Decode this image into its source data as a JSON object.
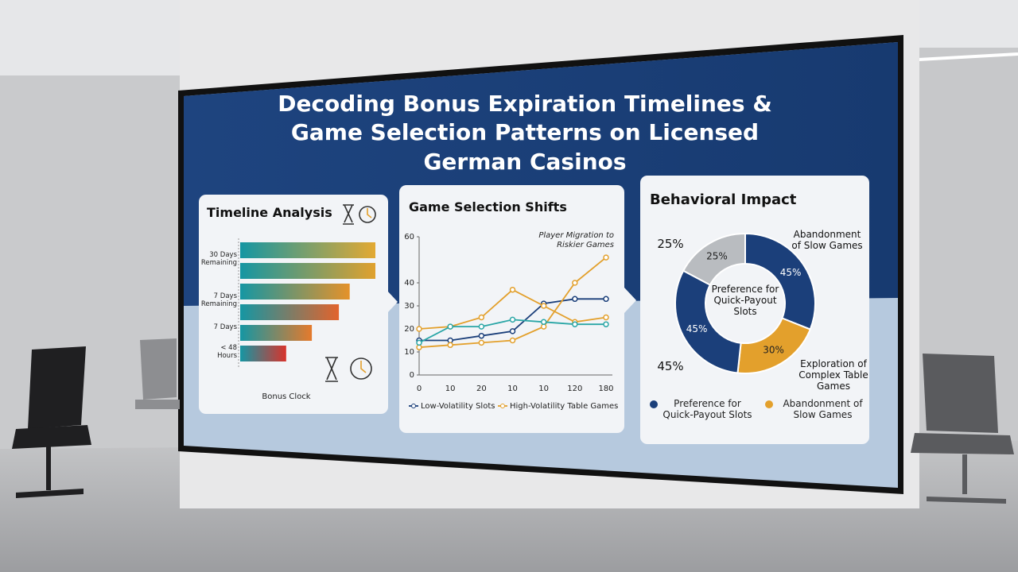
{
  "title": "Decoding Bonus Expiration Timelines & Game Selection Patterns on Licensed German Casinos",
  "chart_data": [
    {
      "type": "bar",
      "orientation": "horizontal",
      "title": "Timeline Analysis",
      "categories": [
        "30 Days Remaining",
        null,
        "7 Days Remaining",
        null,
        "7 Days",
        "< 48 Hours"
      ],
      "values": [
        100,
        100,
        81,
        73,
        53,
        34
      ],
      "colors": [
        "#e3a933",
        "#e0a12e",
        "#e5922a",
        "#e2632c",
        "#e57a2c",
        "#d8332c"
      ],
      "xlabel": "Bonus Clock"
    },
    {
      "type": "line",
      "title": "Game Selection Shifts",
      "categories": [
        "0",
        "10",
        "20",
        "10",
        "10",
        "120",
        "180"
      ],
      "ylim": [
        0,
        60
      ],
      "yticks": [
        0,
        10,
        20,
        30,
        40,
        60
      ],
      "annotation": "Player Migration to Riskier Games",
      "series": [
        {
          "name": "Low-Volatility Slots",
          "color": "#1b3f7a",
          "values": [
            15,
            15,
            17,
            19,
            31,
            33,
            33
          ]
        },
        {
          "name": "High-Volatility Table Games",
          "color": "#e3a02c",
          "values": [
            12,
            13,
            14,
            15,
            21,
            40,
            51
          ]
        },
        {
          "color": "#e3a02c",
          "values": [
            20,
            21,
            25,
            37,
            30,
            23,
            25
          ]
        },
        {
          "color": "#2aa6a6",
          "values": [
            14,
            21,
            21,
            24,
            23,
            22,
            22
          ]
        }
      ]
    },
    {
      "type": "pie",
      "title": "Behavioral Impact",
      "values": [
        45,
        30,
        45,
        25
      ],
      "value_labels": [
        "45%",
        "30%",
        "45%",
        "25%"
      ],
      "colors": [
        "#1b3f7a",
        "#e3a02c",
        "#1b3f7a",
        "#b9bcc0"
      ],
      "center_label": "Preference for Quick-Payout Slots",
      "annotations": [
        "25%",
        "45%",
        "Abandonment of Slow Games",
        "Exploration of Complex Table Games"
      ],
      "legend": [
        {
          "label": "Preference for Quick-Payout Slots",
          "color": "#1b3f7a"
        },
        {
          "label": "Abandonment of Slow Games",
          "color": "#e3a02c"
        }
      ]
    }
  ]
}
